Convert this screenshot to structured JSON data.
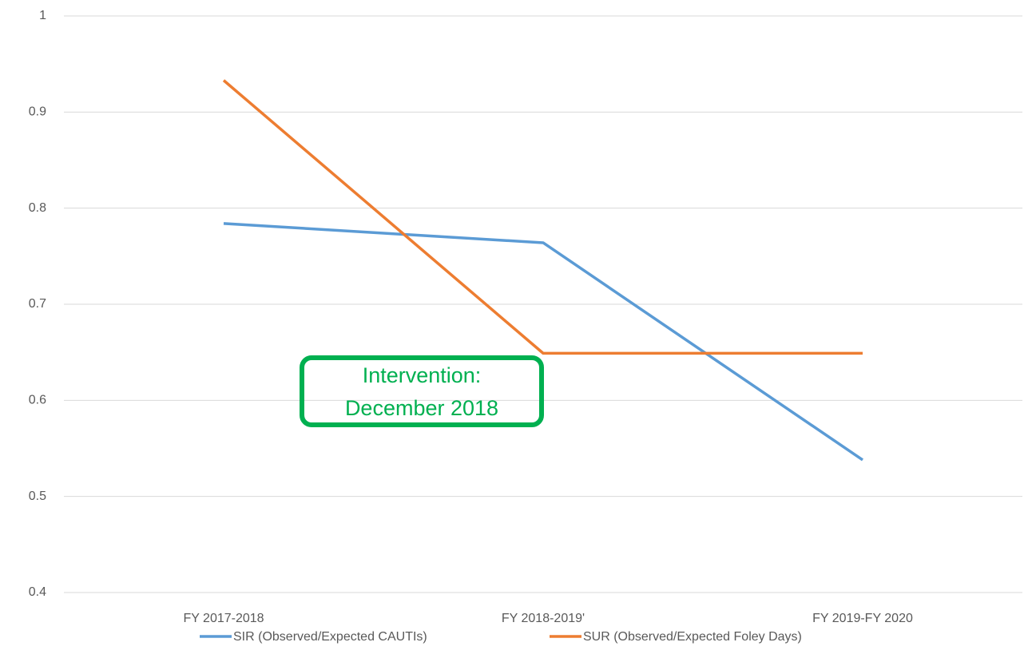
{
  "chart_data": {
    "type": "line",
    "categories": [
      "FY 2017-2018",
      "FY 2018-2019'",
      "FY 2019-FY 2020"
    ],
    "series": [
      {
        "name": "SIR (Observed/Expected CAUTIs)",
        "color": "#5b9bd5",
        "values": [
          0.784,
          0.764,
          0.538
        ]
      },
      {
        "name": "SUR (Observed/Expected Foley Days)",
        "color": "#ed7d31",
        "values": [
          0.933,
          0.649,
          0.649
        ]
      }
    ],
    "ylim": [
      0.4,
      1
    ],
    "yticks": [
      0.4,
      0.5,
      0.6,
      0.7,
      0.8,
      0.9,
      1
    ],
    "grid": true,
    "annotation": {
      "lines": [
        "Intervention:",
        "December 2018"
      ],
      "color": "#00b050"
    }
  }
}
